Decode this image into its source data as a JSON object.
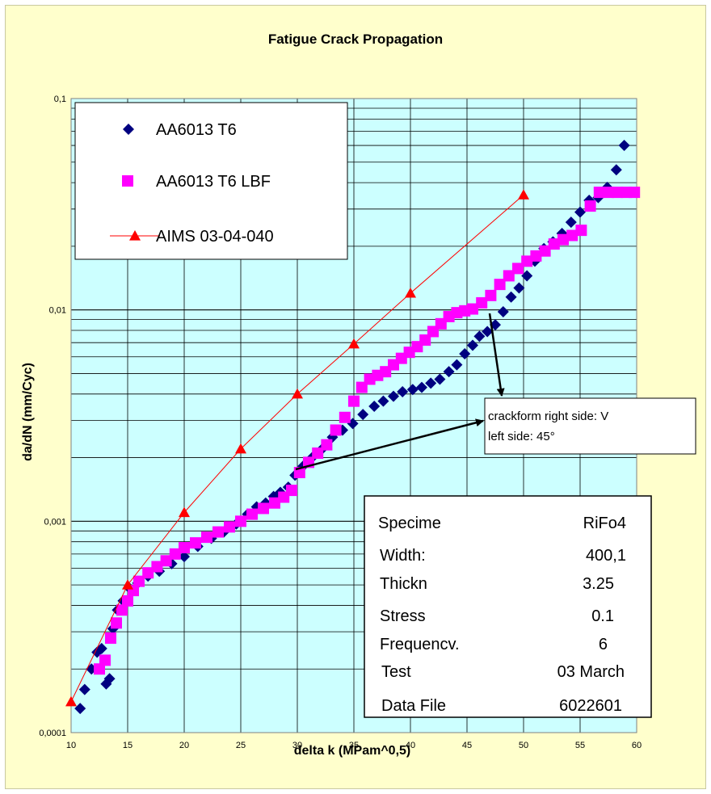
{
  "chart_data": {
    "type": "scatter",
    "title": "Fatigue Crack Propagation",
    "xlabel": "delta k (MPam^0,5)",
    "ylabel": "da/dN (mm/Cyc)",
    "xlim": [
      10,
      60
    ],
    "ylim": [
      0.0001,
      0.1
    ],
    "yscale": "log",
    "grid": true,
    "legend_position": "top-left",
    "x_ticks": [
      "10",
      "15",
      "20",
      "25",
      "30",
      "35",
      "40",
      "45",
      "50",
      "55",
      "60"
    ],
    "y_ticks": [
      "0,0001",
      "0,001",
      "0,01",
      "0,1"
    ],
    "colors": {
      "plot_background": "#ccffff",
      "chart_background": "#ffffcc",
      "series1": "#000080",
      "series2": "#ff00ff",
      "series3": "#ff0000"
    },
    "series": [
      {
        "name": "AA6013 T6",
        "marker": "diamond",
        "x": [
          10.8,
          11.2,
          11.8,
          12.3,
          12.7,
          13.1,
          13.4,
          13.7,
          14.1,
          14.6,
          15.2,
          15.9,
          16.8,
          17.8,
          18.9,
          20.0,
          21.2,
          22.4,
          23.5,
          24.6,
          25.6,
          26.4,
          27.2,
          27.9,
          28.5,
          29.2,
          29.8,
          30.5,
          31.3,
          32.2,
          33.1,
          34.0,
          34.9,
          35.8,
          36.8,
          37.6,
          38.5,
          39.3,
          40.2,
          41.0,
          41.8,
          42.6,
          43.4,
          44.1,
          44.8,
          45.5,
          46.1,
          46.8,
          47.5,
          48.2,
          48.9,
          49.6,
          50.3,
          51.0,
          51.8,
          52.6,
          53.4,
          54.2,
          55.0,
          55.8,
          56.6,
          57.4,
          58.2,
          58.9
        ],
        "y": [
          0.00013,
          0.00016,
          0.0002,
          0.00024,
          0.00025,
          0.00017,
          0.00018,
          0.00031,
          0.00038,
          0.00042,
          0.00048,
          0.00051,
          0.00055,
          0.00058,
          0.00063,
          0.00068,
          0.00076,
          0.00083,
          0.00089,
          0.00097,
          0.00108,
          0.00117,
          0.00122,
          0.00131,
          0.00137,
          0.00145,
          0.00165,
          0.00182,
          0.002,
          0.0022,
          0.0025,
          0.0027,
          0.0029,
          0.0032,
          0.0035,
          0.0037,
          0.0039,
          0.0041,
          0.0042,
          0.0043,
          0.0045,
          0.0047,
          0.0051,
          0.0055,
          0.0062,
          0.0068,
          0.0075,
          0.0079,
          0.0085,
          0.0098,
          0.0115,
          0.0127,
          0.0145,
          0.017,
          0.0195,
          0.021,
          0.023,
          0.026,
          0.029,
          0.033,
          0.034,
          0.038,
          0.046,
          0.06
        ]
      },
      {
        "name": "AA6013 T6 LBF",
        "marker": "square",
        "x": [
          12.5,
          13.0,
          13.5,
          14.0,
          14.5,
          15.0,
          15.5,
          16.0,
          16.8,
          17.6,
          18.4,
          19.2,
          20.0,
          21.0,
          22.0,
          23.0,
          24.0,
          25.0,
          26.0,
          27.0,
          28.0,
          28.8,
          29.5,
          30.2,
          31.0,
          31.8,
          32.6,
          33.4,
          34.2,
          35.0,
          35.7,
          36.4,
          37.1,
          37.8,
          38.5,
          39.2,
          39.9,
          40.6,
          41.3,
          42.0,
          42.7,
          43.4,
          44.1,
          44.8,
          45.5,
          46.3,
          47.1,
          47.9,
          48.7,
          49.5,
          50.3,
          51.1,
          51.9,
          52.7,
          53.5,
          54.3,
          55.1,
          55.9,
          56.7,
          57.5,
          58.3,
          59.1,
          59.8
        ],
        "y": [
          0.0002,
          0.00022,
          0.00028,
          0.00033,
          0.00038,
          0.00042,
          0.00047,
          0.00052,
          0.00057,
          0.00061,
          0.00065,
          0.0007,
          0.00075,
          0.00079,
          0.00084,
          0.00089,
          0.00094,
          0.001,
          0.00108,
          0.00115,
          0.00122,
          0.0013,
          0.0014,
          0.0017,
          0.0019,
          0.0021,
          0.0023,
          0.0027,
          0.0031,
          0.0037,
          0.0043,
          0.0047,
          0.0049,
          0.0051,
          0.0055,
          0.0059,
          0.0063,
          0.0067,
          0.0072,
          0.0079,
          0.0086,
          0.0093,
          0.0097,
          0.0099,
          0.0101,
          0.0108,
          0.0117,
          0.0132,
          0.0145,
          0.0157,
          0.017,
          0.018,
          0.019,
          0.0205,
          0.0215,
          0.0225,
          0.0238,
          0.031,
          0.036,
          0.036,
          0.036,
          0.036,
          0.036
        ]
      },
      {
        "name": "AIMS 03-04-040",
        "marker": "triangle",
        "line": true,
        "x": [
          10,
          15,
          20,
          25,
          30,
          35,
          40,
          50
        ],
        "y": [
          0.00014,
          0.0005,
          0.0011,
          0.0022,
          0.004,
          0.0069,
          0.012,
          0.035
        ]
      }
    ],
    "annotation": {
      "lines": [
        "crackform right side: V",
        "left side: 45°"
      ]
    },
    "info_box": {
      "rows": [
        {
          "label": "Specime",
          "value": "RiFo4"
        },
        {
          "label": "Width:",
          "value": "400,1"
        },
        {
          "label": "Thickn",
          "value": "3.25"
        },
        {
          "label": "Stress",
          "value": "0.1"
        },
        {
          "label": "Frequencv.",
          "value": "6"
        },
        {
          "label": "Test",
          "value": "03 March"
        },
        {
          "label": "Data File",
          "value": "6022601"
        }
      ]
    }
  }
}
